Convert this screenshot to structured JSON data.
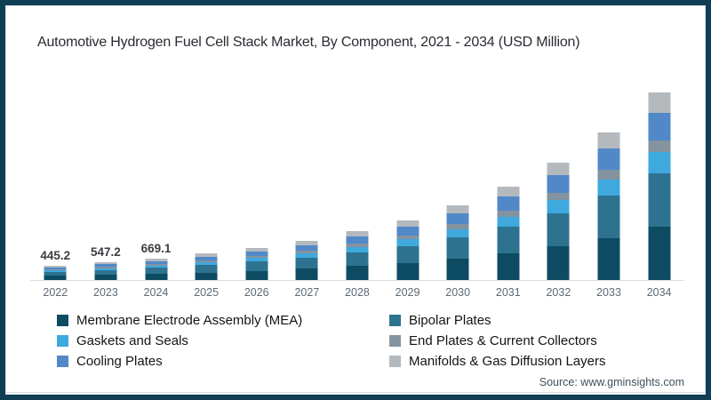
{
  "title": "Automotive Hydrogen Fuel Cell Stack Market, By Component, 2021 - 2034 (USD Million)",
  "source": "Source: www.gminsights.com",
  "frame": {
    "border_color": "#0f3e55"
  },
  "chart_data": {
    "type": "bar",
    "stacked": true,
    "title": "Automotive Hydrogen Fuel Cell Stack Market, By Component, 2021 - 2034 (USD Million)",
    "xlabel": "",
    "ylabel": "USD Million",
    "ylim": [
      0,
      6100
    ],
    "grid": false,
    "legend_position": "bottom",
    "categories": [
      "2022",
      "2023",
      "2024",
      "2025",
      "2026",
      "2027",
      "2028",
      "2029",
      "2030",
      "2031",
      "2032",
      "2033",
      "2034"
    ],
    "totals": [
      445.2,
      547.2,
      669.1,
      820,
      1005,
      1230,
      1520,
      1865,
      2330,
      2915,
      3665,
      4610,
      5860
    ],
    "total_labels": [
      "445.2",
      "547.2",
      "669.1",
      "",
      "",
      "",
      "",
      "",
      "",
      "",
      "",
      "",
      ""
    ],
    "series": [
      {
        "name": "Membrane Electrode Assembly (MEA)",
        "color": "#0d4b62",
        "values": [
          126.9,
          156.0,
          190.7,
          233.7,
          286.4,
          350.6,
          433.2,
          531.5,
          664.1,
          830.8,
          1044.5,
          1313.9,
          1670.1
        ]
      },
      {
        "name": "Bipolar Plates",
        "color": "#2d7390",
        "values": [
          126.9,
          156.0,
          190.7,
          233.7,
          286.4,
          350.6,
          433.2,
          531.5,
          664.1,
          830.8,
          1044.5,
          1313.9,
          1670.1
        ]
      },
      {
        "name": "Gaskets and Seals",
        "color": "#3fa9de",
        "values": [
          49.0,
          60.2,
          73.6,
          90.2,
          110.6,
          135.3,
          167.2,
          205.2,
          256.3,
          320.7,
          403.2,
          507.1,
          644.6
        ]
      },
      {
        "name": "End Plates & Current Collectors",
        "color": "#8493a0",
        "values": [
          28.9,
          35.6,
          43.5,
          53.3,
          65.3,
          80.0,
          98.8,
          121.2,
          151.5,
          189.5,
          238.2,
          299.7,
          380.9
        ]
      },
      {
        "name": "Cooling Plates",
        "color": "#5189c8",
        "values": [
          64.6,
          79.3,
          97.0,
          118.9,
          145.7,
          178.4,
          220.4,
          270.4,
          337.9,
          422.7,
          531.4,
          668.5,
          849.7
        ]
      },
      {
        "name": "Manifolds & Gas Diffusion Layers",
        "color": "#b4b9be",
        "values": [
          49.0,
          60.2,
          73.6,
          90.2,
          110.6,
          135.3,
          167.2,
          205.2,
          256.3,
          320.7,
          403.2,
          507.1,
          644.6
        ]
      }
    ],
    "legend_columns": [
      [
        0,
        2,
        4
      ],
      [
        1,
        3,
        5
      ]
    ]
  }
}
